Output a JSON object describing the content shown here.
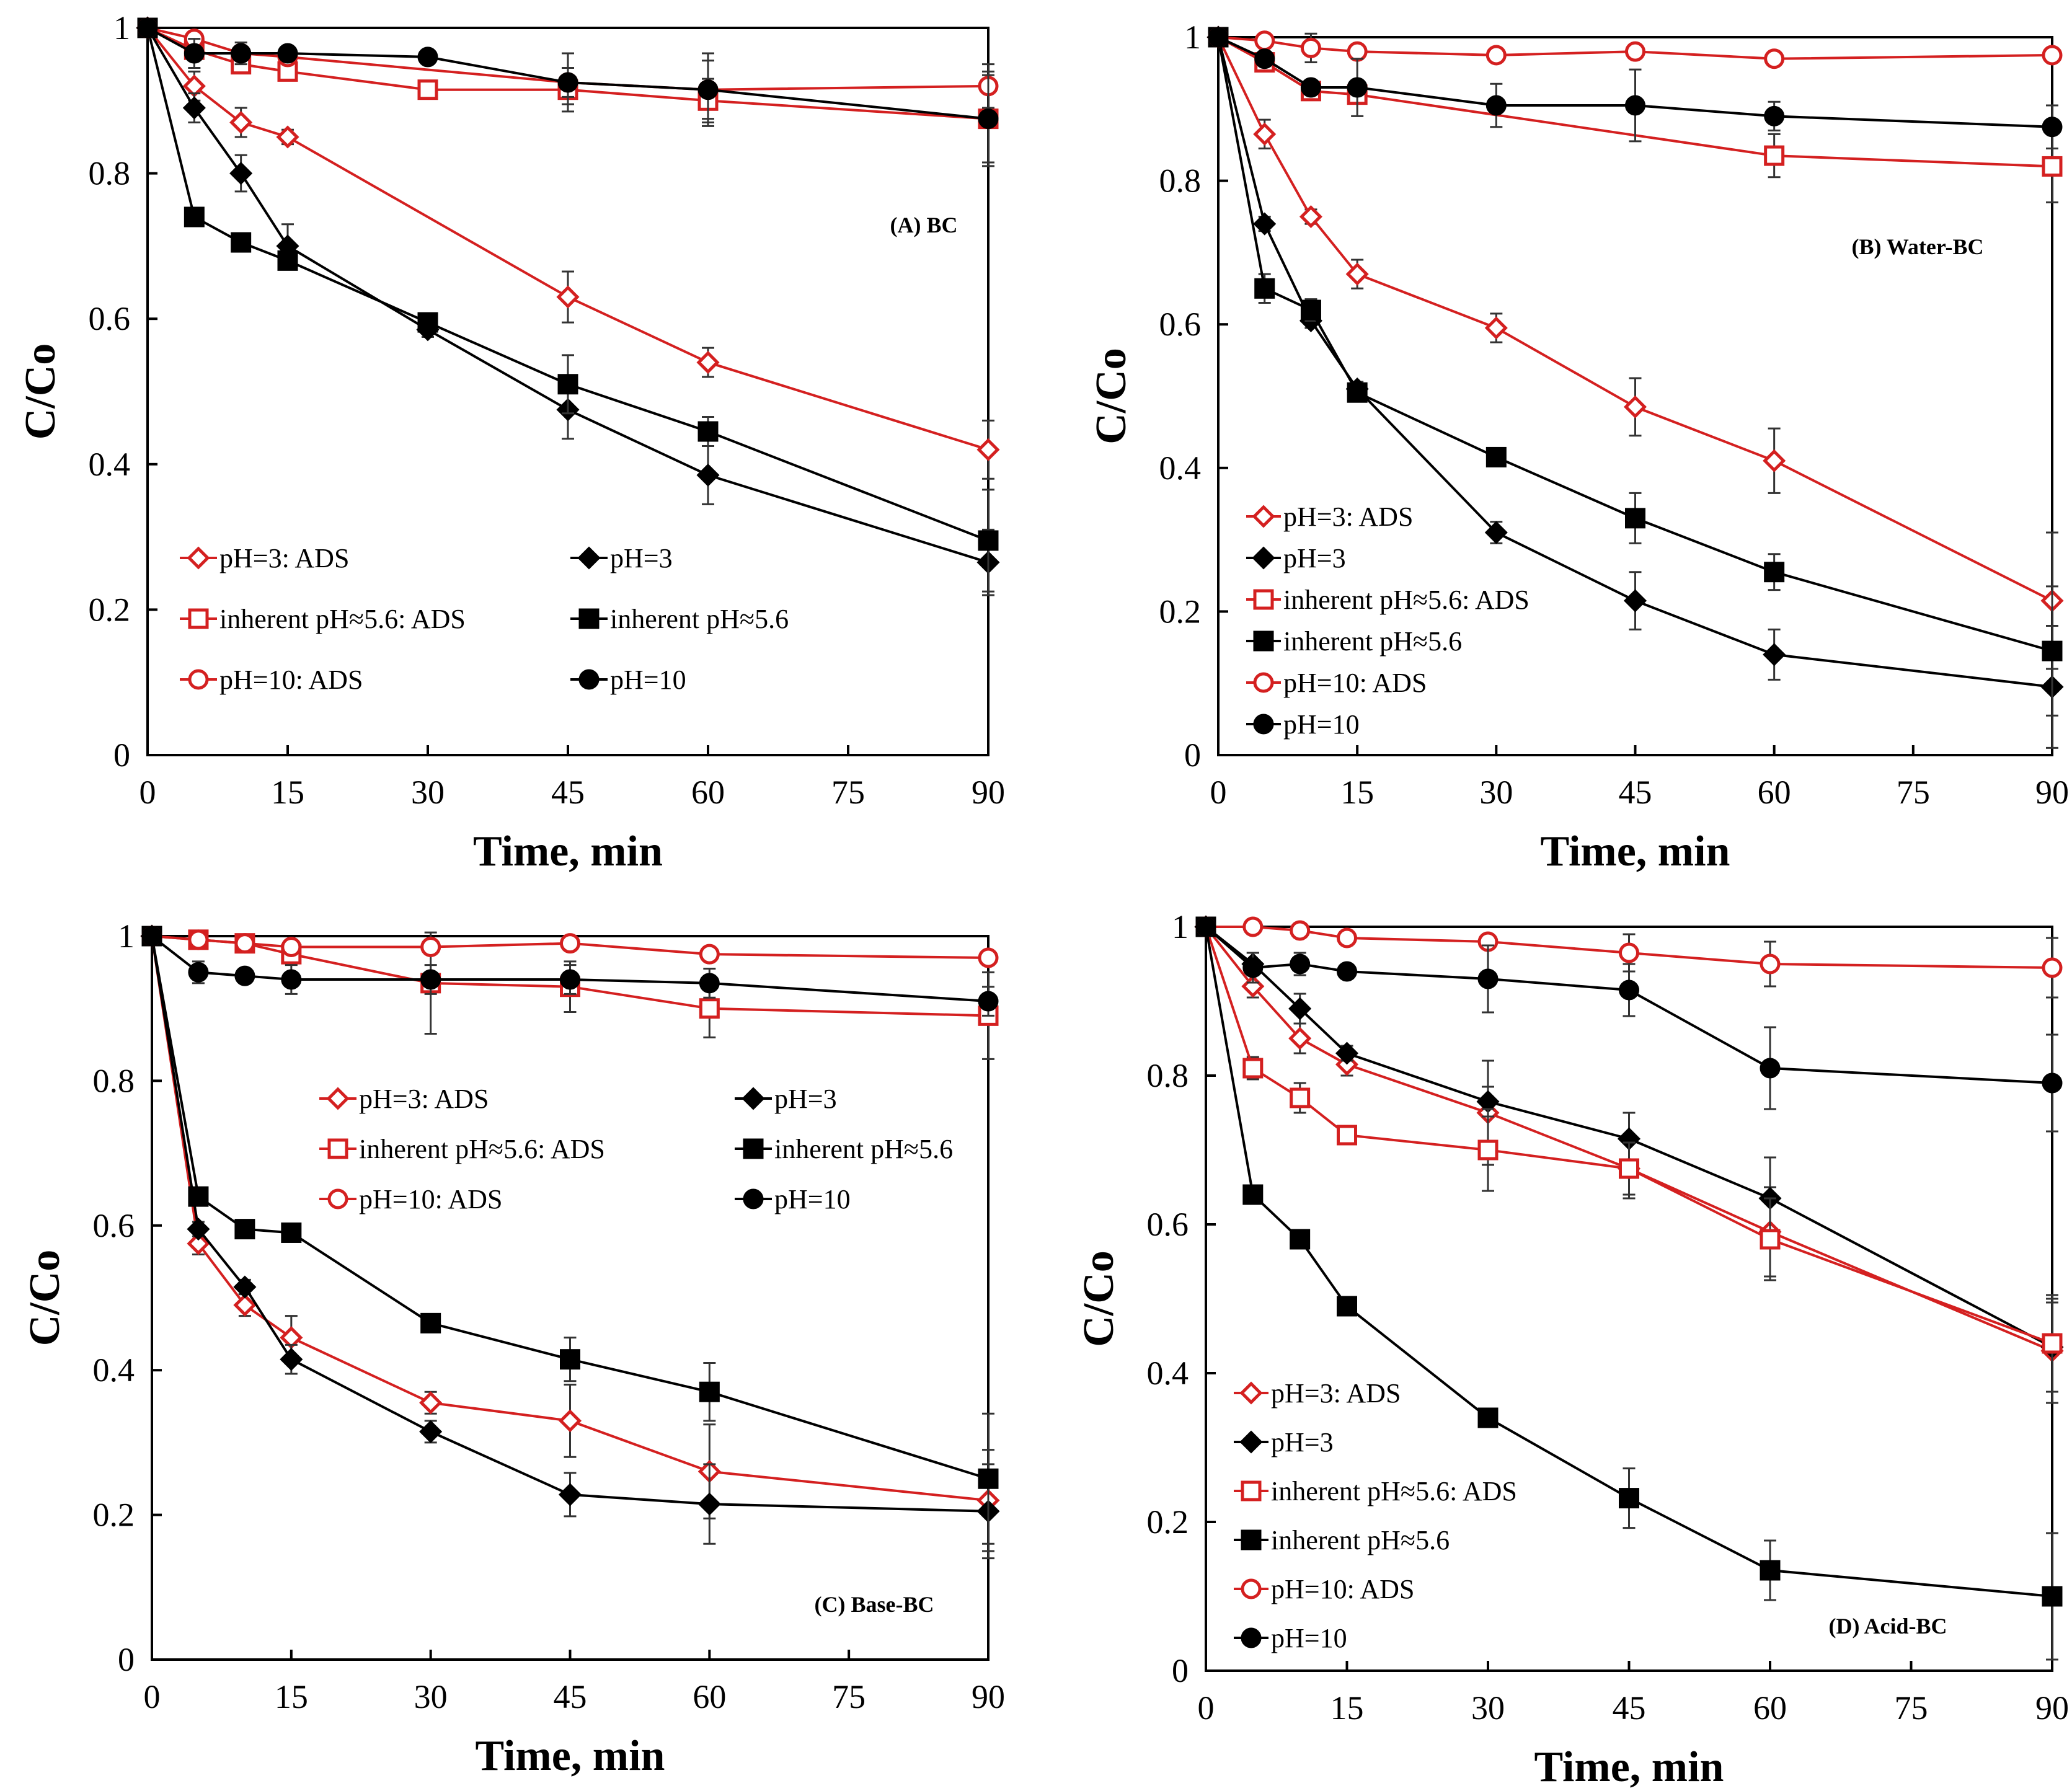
{
  "figure": {
    "series_styles": {
      "pH=3: ADS": {
        "color": "#d42020",
        "marker": "diamond",
        "filled": false
      },
      "pH=3": {
        "color": "#000000",
        "marker": "diamond",
        "filled": true
      },
      "inherent pH≈5.6: ADS": {
        "color": "#d42020",
        "marker": "square",
        "filled": false
      },
      "inherent pH≈5.6": {
        "color": "#000000",
        "marker": "square",
        "filled": true
      },
      "pH=10: ADS": {
        "color": "#d42020",
        "marker": "circle",
        "filled": false
      },
      "pH=10": {
        "color": "#000000",
        "marker": "circle",
        "filled": true
      }
    }
  },
  "chart_data": [
    {
      "type": "line",
      "title": "(A) BC",
      "xlabel": "Time, min",
      "ylabel": "C/Co",
      "xlim": [
        0,
        90
      ],
      "ylim": [
        0,
        1
      ],
      "xticks": [
        0,
        15,
        30,
        45,
        60,
        75,
        90
      ],
      "yticks": [
        0,
        0.2,
        0.4,
        0.6,
        0.8,
        1
      ],
      "ytick_labels": [
        "0",
        "0.2",
        "0.4",
        "0.6",
        "0.8",
        "1"
      ],
      "legend": {
        "columns": 2,
        "position": "lower-left",
        "entries": [
          "pH=3: ADS",
          "pH=3",
          "inherent pH≈5.6: ADS",
          "inherent pH≈5.6",
          "pH=10: ADS",
          "pH=10"
        ]
      },
      "x": [
        0,
        5,
        10,
        15,
        30,
        45,
        60,
        90
      ],
      "series": [
        {
          "name": "pH=3: ADS",
          "values": [
            1,
            0.92,
            0.87,
            0.85,
            null,
            0.63,
            0.54,
            0.42
          ],
          "errors": [
            0,
            0.02,
            0.02,
            0.01,
            null,
            0.035,
            0.02,
            0.04
          ]
        },
        {
          "name": "pH=3",
          "values": [
            1,
            0.89,
            0.8,
            0.7,
            0.585,
            0.475,
            0.385,
            0.265
          ],
          "errors": [
            0,
            0.02,
            0.025,
            0.03,
            0.01,
            0.04,
            0.04,
            0.045
          ]
        },
        {
          "name": "inherent pH≈5.6: ADS",
          "values": [
            1,
            0.97,
            0.95,
            0.94,
            0.915,
            0.915,
            0.9,
            0.875
          ],
          "errors": [
            0,
            0.01,
            0.01,
            0.01,
            0.01,
            0.02,
            0.03,
            0.06
          ]
        },
        {
          "name": "inherent pH≈5.6",
          "values": [
            1,
            0.74,
            0.705,
            0.68,
            0.595,
            0.51,
            0.445,
            0.295
          ],
          "errors": [
            0,
            0.01,
            0.01,
            0.01,
            0.01,
            0.04,
            0.02,
            0.07
          ]
        },
        {
          "name": "pH=10: ADS",
          "values": [
            1,
            0.985,
            0.965,
            0.96,
            null,
            0.925,
            0.915,
            0.92
          ],
          "errors": [
            0,
            0.01,
            0.01,
            0.01,
            null,
            0.02,
            0.04,
            0.03
          ]
        },
        {
          "name": "pH=10",
          "values": [
            1,
            0.965,
            0.965,
            0.965,
            0.96,
            0.925,
            0.915,
            0.875
          ],
          "errors": [
            0,
            0.02,
            0.015,
            0.01,
            0.01,
            0.04,
            0.05,
            0.065
          ]
        }
      ]
    },
    {
      "type": "line",
      "title": "(B) Water-BC",
      "xlabel": "Time, min",
      "ylabel": "C/Co",
      "xlim": [
        0,
        90
      ],
      "ylim": [
        0,
        1
      ],
      "xticks": [
        0,
        15,
        30,
        45,
        60,
        75,
        90
      ],
      "yticks": [
        0,
        0.2,
        0.4,
        0.6,
        0.8,
        1
      ],
      "ytick_labels": [
        "0",
        "0.2",
        "0.4",
        "0.6",
        "0.8",
        "1"
      ],
      "legend": {
        "columns": 1,
        "position": "lower-left",
        "entries": [
          "pH=3: ADS",
          "pH=3",
          "inherent pH≈5.6: ADS",
          "inherent pH≈5.6",
          "pH=10: ADS",
          "pH=10"
        ]
      },
      "x": [
        0,
        5,
        10,
        15,
        30,
        45,
        60,
        90
      ],
      "series": [
        {
          "name": "pH=3: ADS",
          "values": [
            1,
            0.865,
            0.75,
            0.67,
            0.595,
            0.485,
            0.41,
            0.215
          ],
          "errors": [
            0,
            0.02,
            0.01,
            0.02,
            0.02,
            0.04,
            0.045,
            0.095
          ]
        },
        {
          "name": "pH=3",
          "values": [
            1,
            0.74,
            0.605,
            0.51,
            0.31,
            0.215,
            0.14,
            0.095
          ],
          "errors": [
            0,
            0.01,
            0.01,
            0.01,
            0.015,
            0.04,
            0.035,
            0.085
          ]
        },
        {
          "name": "inherent pH≈5.6: ADS",
          "values": [
            1,
            0.965,
            0.925,
            0.92,
            null,
            null,
            0.835,
            0.82
          ],
          "errors": [
            0,
            0.01,
            0.01,
            0.01,
            null,
            null,
            0.03,
            0.05
          ]
        },
        {
          "name": "inherent pH≈5.6",
          "values": [
            1,
            0.65,
            0.62,
            0.505,
            0.415,
            0.33,
            0.255,
            0.145
          ],
          "errors": [
            0,
            0.02,
            0.015,
            0.01,
            0.01,
            0.035,
            0.025,
            0.09
          ]
        },
        {
          "name": "pH=10: ADS",
          "values": [
            1,
            0.995,
            0.985,
            0.98,
            0.975,
            0.98,
            0.97,
            0.975
          ],
          "errors": [
            0,
            0.01,
            0.02,
            0.01,
            0.01,
            0.01,
            0.01,
            0.01
          ]
        },
        {
          "name": "pH=10",
          "values": [
            1,
            0.97,
            0.93,
            0.93,
            0.905,
            0.905,
            0.89,
            0.875
          ],
          "errors": [
            0,
            0.01,
            0.01,
            0.04,
            0.03,
            0.05,
            0.02,
            0.03
          ]
        }
      ]
    },
    {
      "type": "line",
      "title": "(C) Base-BC",
      "xlabel": "Time, min",
      "ylabel": "C/Co",
      "xlim": [
        0,
        90
      ],
      "ylim": [
        0,
        1
      ],
      "xticks": [
        0,
        15,
        30,
        45,
        60,
        75,
        90
      ],
      "yticks": [
        0,
        0.2,
        0.4,
        0.6,
        0.8,
        1
      ],
      "ytick_labels": [
        "0",
        "0.2",
        "0.4",
        "0.6",
        "0.8",
        "1"
      ],
      "legend": {
        "columns": 2,
        "position": "upper-center",
        "entries": [
          "pH=3: ADS",
          "pH=3",
          "inherent pH≈5.6: ADS",
          "inherent pH≈5.6",
          "pH=10: ADS",
          "pH=10"
        ]
      },
      "x": [
        0,
        5,
        10,
        15,
        30,
        45,
        60,
        90
      ],
      "series": [
        {
          "name": "pH=3: ADS",
          "values": [
            1,
            0.575,
            0.49,
            0.445,
            0.355,
            0.33,
            0.26,
            0.22
          ],
          "errors": [
            0,
            0.015,
            0.015,
            0.03,
            0.015,
            0.05,
            0.065,
            0.07
          ]
        },
        {
          "name": "pH=3",
          "values": [
            1,
            0.595,
            0.515,
            0.415,
            0.315,
            0.228,
            0.215,
            0.205
          ],
          "errors": [
            0,
            0.01,
            0.01,
            0.02,
            0.015,
            0.03,
            0.055,
            0.065
          ]
        },
        {
          "name": "inherent pH≈5.6: ADS",
          "values": [
            1,
            0.995,
            0.99,
            0.975,
            0.935,
            0.93,
            0.9,
            0.89
          ],
          "errors": [
            0,
            0.01,
            0.01,
            0.01,
            0.07,
            0.035,
            0.04,
            0.06
          ]
        },
        {
          "name": "inherent pH≈5.6",
          "values": [
            1,
            0.64,
            0.595,
            0.59,
            0.465,
            0.415,
            0.37,
            0.25
          ],
          "errors": [
            0,
            0.01,
            0.01,
            0.01,
            0.01,
            0.03,
            0.04,
            0.09
          ]
        },
        {
          "name": "pH=10: ADS",
          "values": [
            1,
            0.995,
            0.99,
            0.985,
            0.985,
            0.99,
            0.975,
            0.97
          ],
          "errors": [
            0,
            0.01,
            0.01,
            0.01,
            0.01,
            0.01,
            0.01,
            0.01
          ]
        },
        {
          "name": "pH=10",
          "values": [
            1,
            0.95,
            0.945,
            0.94,
            0.94,
            0.94,
            0.935,
            0.91
          ],
          "errors": [
            0,
            0.015,
            0.01,
            0.02,
            0.02,
            0.02,
            0.02,
            0.02
          ]
        }
      ]
    },
    {
      "type": "line",
      "title": "(D) Acid-BC",
      "xlabel": "Time, min",
      "ylabel": "C/Co",
      "xlim": [
        0,
        90
      ],
      "ylim": [
        0,
        1
      ],
      "xticks": [
        0,
        15,
        30,
        45,
        60,
        75,
        90
      ],
      "yticks": [
        0,
        0.2,
        0.4,
        0.6,
        0.8,
        1
      ],
      "ytick_labels": [
        "0",
        "0.2",
        "0.4",
        "0.6",
        "0.8",
        "1"
      ],
      "legend": {
        "columns": 1,
        "position": "lower-left",
        "entries": [
          "pH=3: ADS",
          "pH=3",
          "inherent pH≈5.6: ADS",
          "inherent pH≈5.6",
          "pH=10: ADS",
          "pH=10"
        ]
      },
      "x": [
        0,
        5,
        10,
        15,
        30,
        45,
        60,
        90
      ],
      "series": [
        {
          "name": "pH=3: ADS",
          "values": [
            1,
            0.92,
            0.85,
            0.815,
            0.75,
            0.675,
            0.59,
            0.43
          ],
          "errors": [
            0,
            0.015,
            0.02,
            0.015,
            0.07,
            0.04,
            0.06,
            0.07
          ]
        },
        {
          "name": "pH=3",
          "values": [
            1,
            0.95,
            0.89,
            0.83,
            0.765,
            0.715,
            0.635,
            0.435
          ],
          "errors": [
            0,
            0.015,
            0.02,
            0.01,
            0.02,
            0.035,
            0.055,
            0.06
          ]
        },
        {
          "name": "inherent pH≈5.6: ADS",
          "values": [
            1,
            0.81,
            0.77,
            0.72,
            0.7,
            0.675,
            0.58,
            0.44
          ],
          "errors": [
            0,
            0.015,
            0.02,
            0.01,
            0.055,
            0.035,
            0.055,
            0.065
          ]
        },
        {
          "name": "inherent pH≈5.6",
          "values": [
            1,
            0.64,
            0.58,
            0.49,
            0.34,
            0.232,
            0.135,
            0.1
          ],
          "errors": [
            0,
            0.01,
            0.01,
            0.01,
            0.01,
            0.04,
            0.04,
            0.085
          ]
        },
        {
          "name": "pH=10: ADS",
          "values": [
            1,
            1.0,
            0.995,
            0.985,
            0.98,
            0.965,
            0.95,
            0.945
          ],
          "errors": [
            0,
            0.01,
            0.01,
            0.01,
            0.01,
            0.025,
            0.03,
            0.04
          ]
        },
        {
          "name": "pH=10",
          "values": [
            1,
            0.945,
            0.95,
            0.94,
            0.93,
            0.915,
            0.81,
            0.79
          ],
          "errors": [
            0,
            0.02,
            0.015,
            0.01,
            0.045,
            0.035,
            0.055,
            0.065
          ]
        }
      ]
    }
  ]
}
